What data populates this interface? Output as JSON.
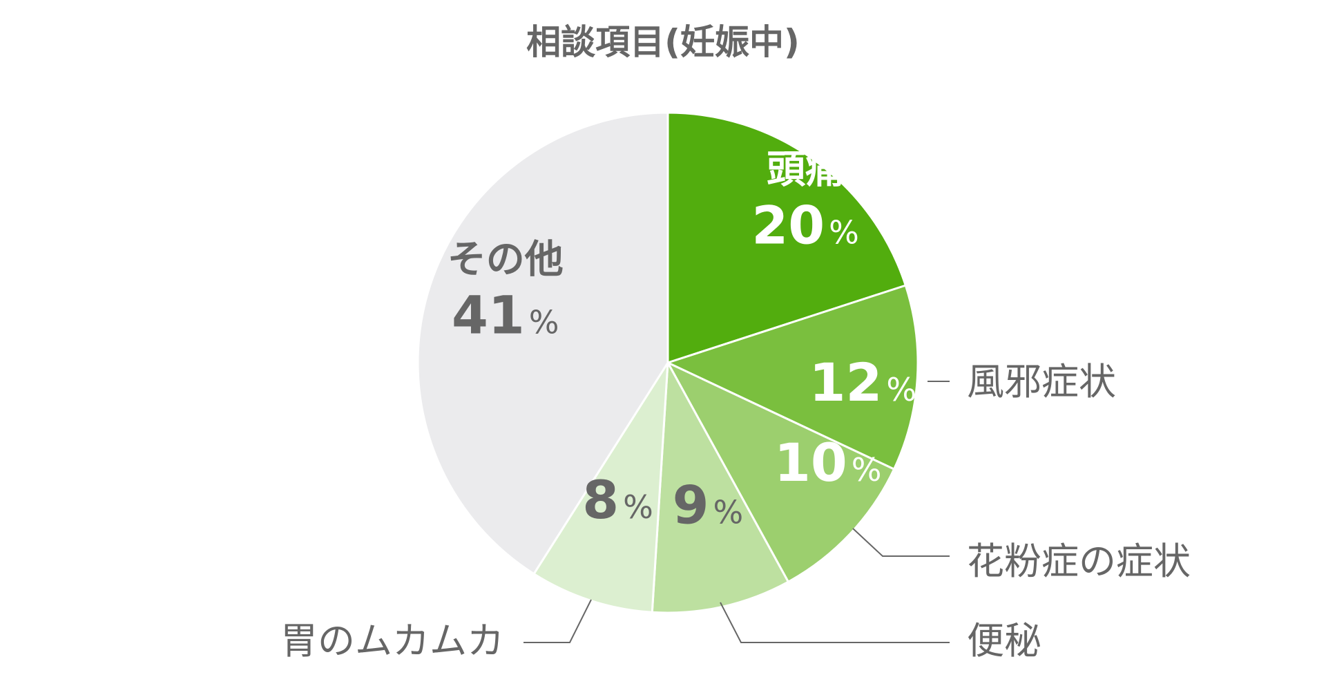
{
  "chart_data": {
    "type": "pie",
    "title": "相談項目(妊娠中)",
    "unit": "%",
    "start": "top",
    "direction": "clockwise",
    "slices": [
      {
        "label": "頭痛",
        "value": 20,
        "color": "#52ad0e",
        "text_color": "#ffffff"
      },
      {
        "label": "風邪症状",
        "value": 12,
        "color": "#7abf3e",
        "text_color": "#ffffff"
      },
      {
        "label": "花粉症の症状",
        "value": 10,
        "color": "#9ccf6e",
        "text_color": "#ffffff"
      },
      {
        "label": "便秘",
        "value": 9,
        "color": "#bde0a0",
        "text_color": "#666666"
      },
      {
        "label": "胃のムカムカ",
        "value": 8,
        "color": "#dcefd0",
        "text_color": "#666666"
      },
      {
        "label": "その他",
        "value": 41,
        "color": "#ebebed",
        "text_color": "#666666"
      }
    ]
  }
}
